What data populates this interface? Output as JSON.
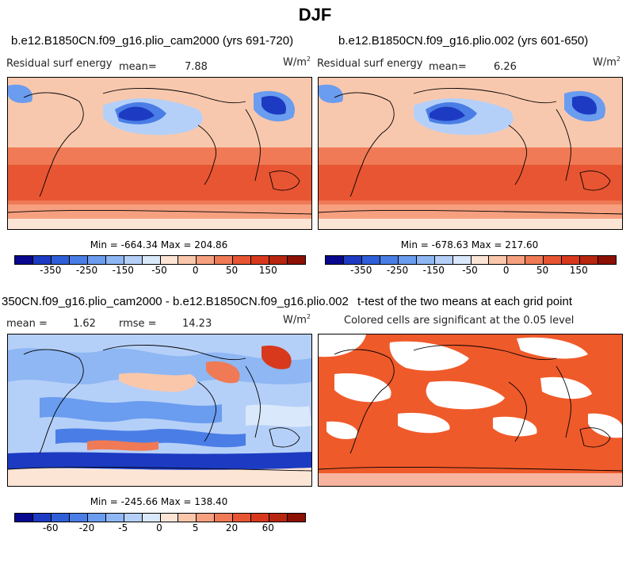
{
  "figure_title": "DJF",
  "panels": {
    "top_left": {
      "title": "b.e12.B1850CN.f09_g16.plio_cam2000 (yrs 691-720)",
      "variable": "Residual surf energy",
      "mean_label": "mean=",
      "mean_value": "7.88",
      "units": "W/m",
      "units_exp": "2",
      "min_max": "Min = -664.34  Max = 204.86"
    },
    "top_right": {
      "title": "b.e12.B1850CN.f09_g16.plio.002 (yrs 601-650)",
      "variable": "Residual surf energy",
      "mean_label": "mean=",
      "mean_value": "6.26",
      "units": "W/m",
      "units_exp": "2",
      "min_max": "Min = -678.63  Max = 217.60"
    },
    "bottom_left": {
      "title": "350CN.f09_g16.plio_cam2000 - b.e12.B1850CN.f09_g16.plio.002",
      "mean_label": "mean =",
      "mean_value": "1.62",
      "rmse_label": "rmse =",
      "rmse_value": "14.23",
      "units": "W/m",
      "units_exp": "2",
      "min_max": "Min = -245.66  Max = 138.40"
    },
    "bottom_right": {
      "title": "t-test of the two means at each grid point",
      "subtitle": "Colored cells are significant at the 0.05 level",
      "fill_color": "#ef5a2a"
    }
  },
  "colorbars": {
    "field": {
      "colors": [
        "#08088f",
        "#1c3bc2",
        "#2f5fd8",
        "#4a7ee6",
        "#6a9cef",
        "#8fb7f4",
        "#b5d0f8",
        "#dae8fb",
        "#fde5d6",
        "#fbc7ab",
        "#f6a07f",
        "#ef7a55",
        "#e85532",
        "#d8391d",
        "#b8260f",
        "#8c1004"
      ],
      "tick_labels": [
        "-350",
        "-250",
        "-150",
        "-50",
        "0",
        "50",
        "150"
      ]
    },
    "difference": {
      "colors": [
        "#08088f",
        "#1c3bc2",
        "#2f5fd8",
        "#4a7ee6",
        "#6a9cef",
        "#8fb7f4",
        "#b5d0f8",
        "#dae8fb",
        "#fde5d6",
        "#fbc7ab",
        "#f6a07f",
        "#ef7a55",
        "#e85532",
        "#d8391d",
        "#b8260f",
        "#8c1004"
      ],
      "tick_labels": [
        "-60",
        "-20",
        "-5",
        "0",
        "5",
        "20",
        "60"
      ]
    }
  }
}
